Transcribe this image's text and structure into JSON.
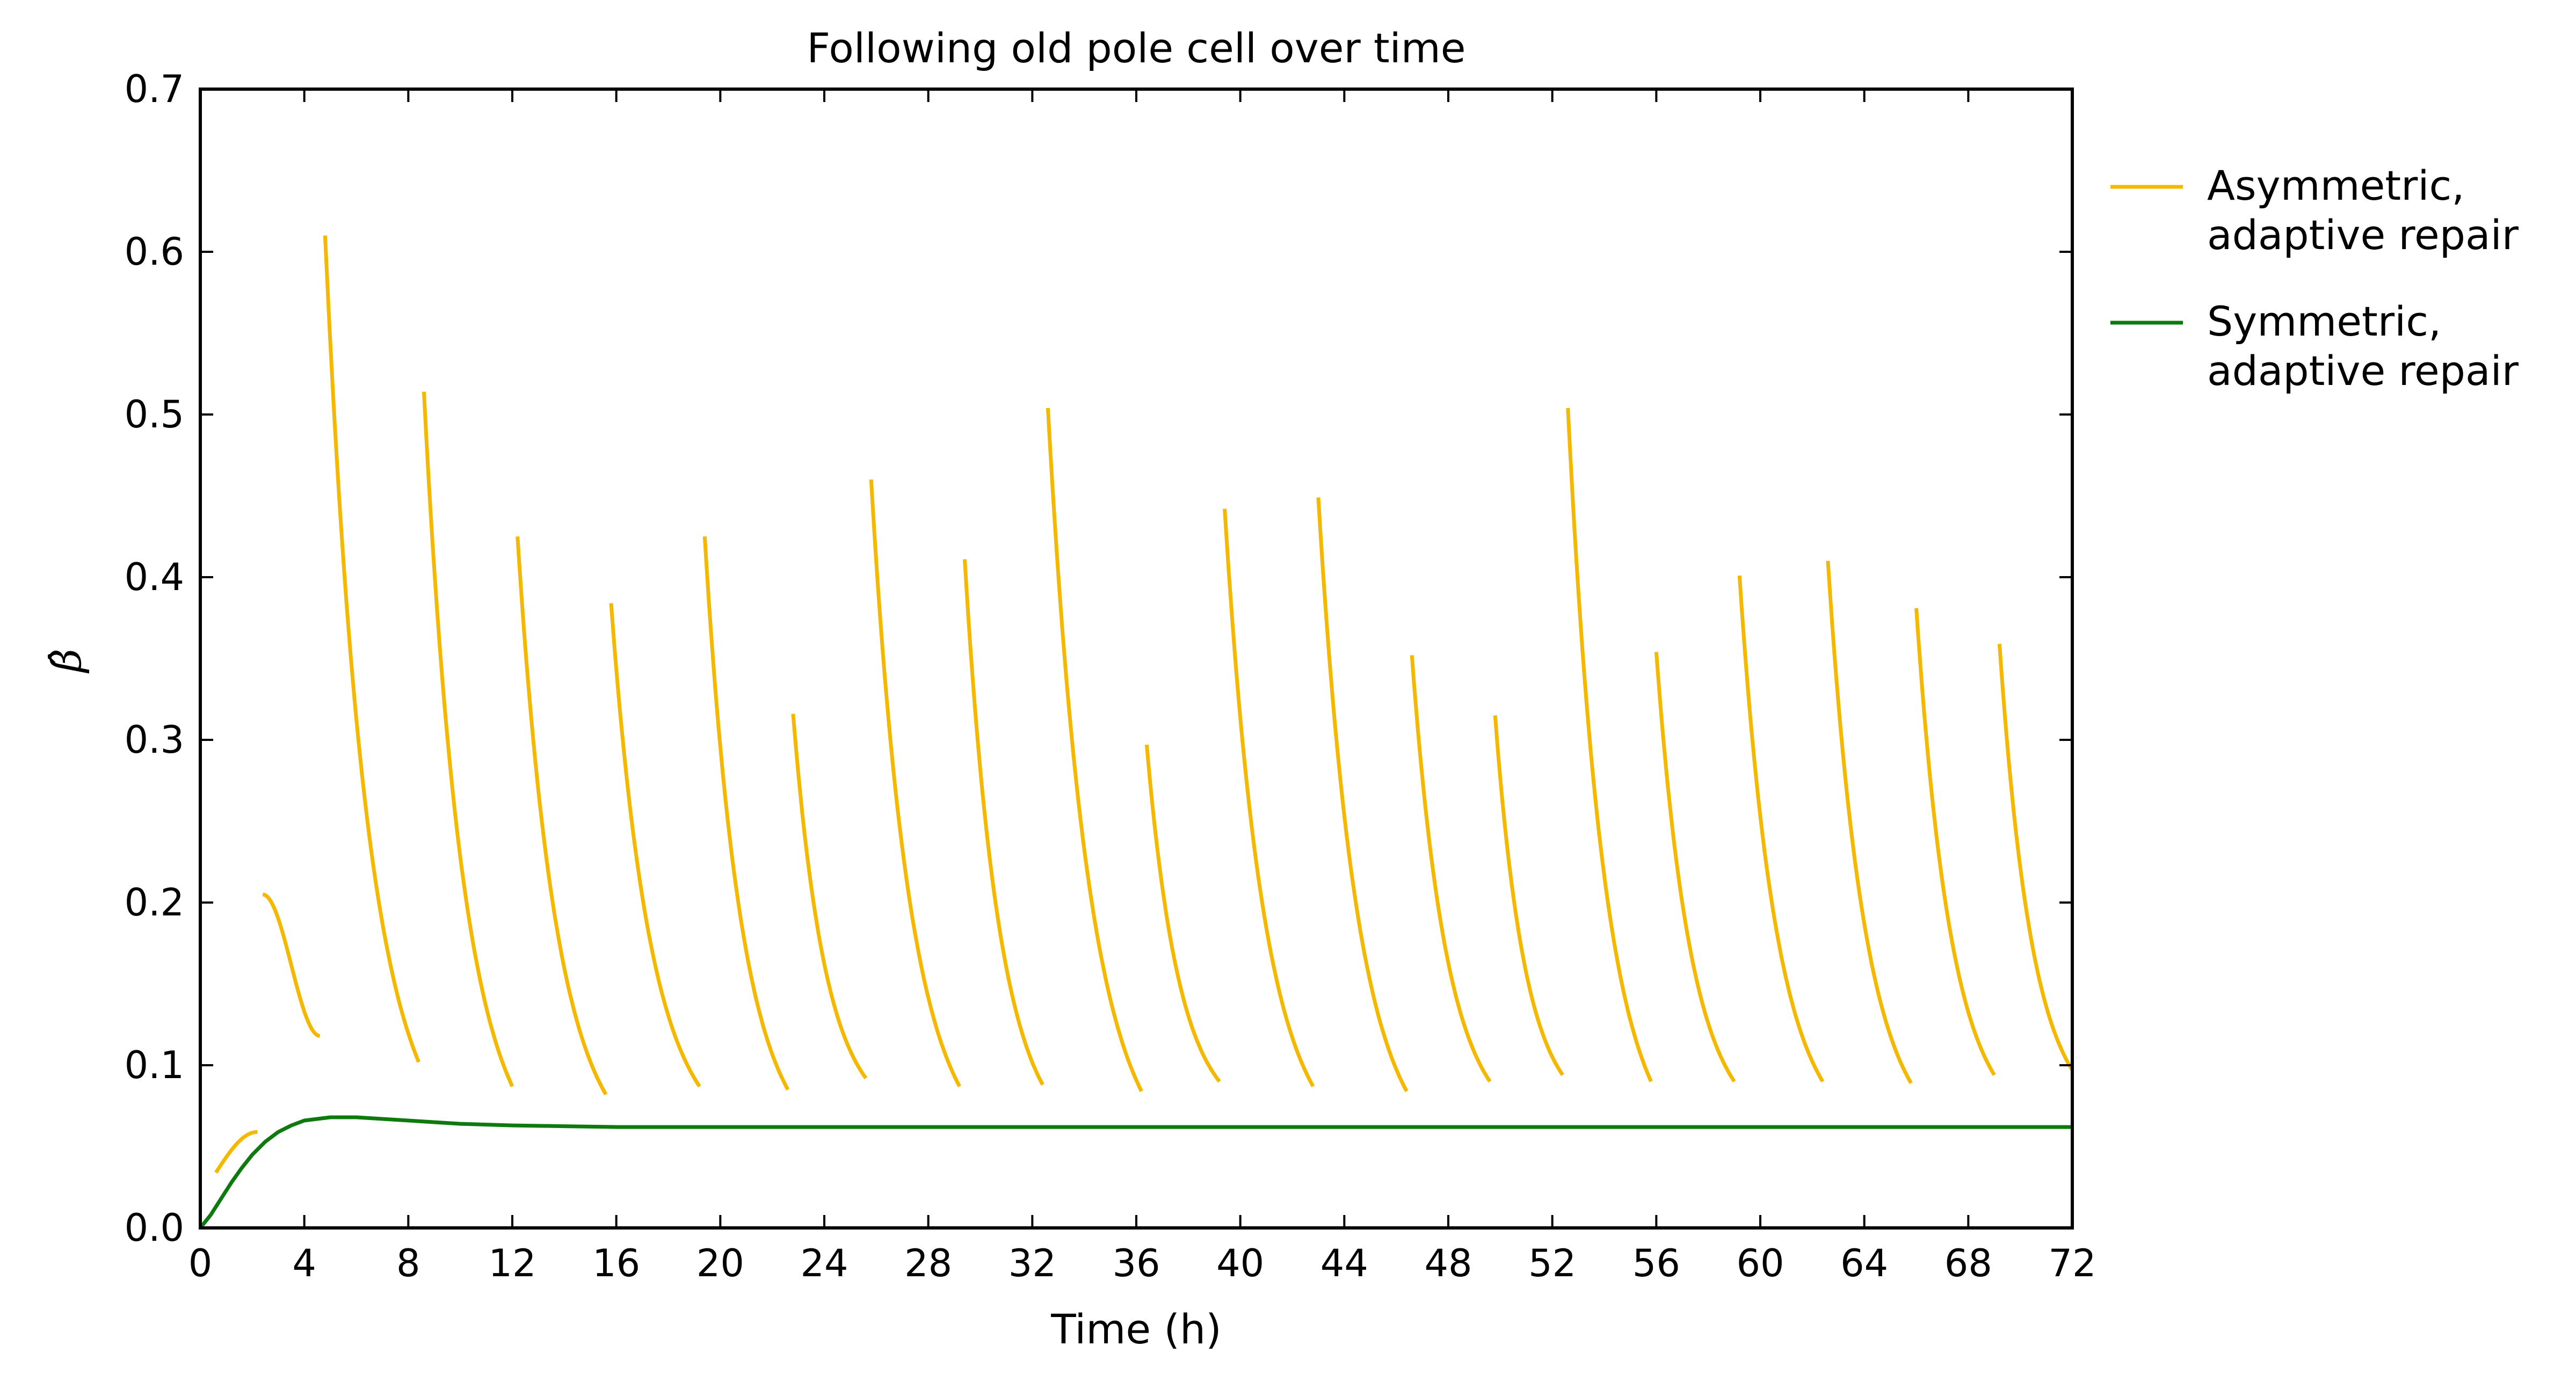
{
  "chart_data": {
    "type": "line",
    "title": "Following old pole cell over time",
    "xlabel": "Time (h)",
    "ylabel": "β̂",
    "xlim": [
      0,
      72
    ],
    "ylim": [
      0,
      0.7
    ],
    "xticks": [
      0,
      4,
      8,
      12,
      16,
      20,
      24,
      28,
      32,
      36,
      40,
      44,
      48,
      52,
      56,
      60,
      64,
      68,
      72
    ],
    "yticks": [
      0.0,
      0.1,
      0.2,
      0.3,
      0.4,
      0.5,
      0.6,
      0.7
    ],
    "xtick_labels": [
      "0",
      "4",
      "8",
      "12",
      "16",
      "20",
      "24",
      "28",
      "32",
      "36",
      "40",
      "44",
      "48",
      "52",
      "56",
      "60",
      "64",
      "68",
      "72"
    ],
    "ytick_labels": [
      "0.0",
      "0.1",
      "0.2",
      "0.3",
      "0.4",
      "0.5",
      "0.6",
      "0.7"
    ],
    "grid": false,
    "legend_position": "outside-right-top",
    "series": [
      {
        "name": "Asymmetric, adaptive repair",
        "legend_lines": [
          "Asymmetric,",
          "adaptive repair"
        ],
        "color": "#f5b800",
        "segments": [
          {
            "t_start": 0.6,
            "t_end": 2.2,
            "y_start": 0.034,
            "y_end": 0.059,
            "shape": "rise"
          },
          {
            "t_start": 2.4,
            "t_end": 4.6,
            "y_start": 0.205,
            "y_end": 0.118,
            "shape": "sigmoid"
          },
          {
            "t_start": 4.8,
            "t_end": 8.4,
            "y_start": 0.61,
            "y_end": 0.102,
            "shape": "decay"
          },
          {
            "t_start": 8.6,
            "t_end": 12.0,
            "y_start": 0.514,
            "y_end": 0.087,
            "shape": "decay"
          },
          {
            "t_start": 12.2,
            "t_end": 15.6,
            "y_start": 0.425,
            "y_end": 0.082,
            "shape": "decay"
          },
          {
            "t_start": 15.8,
            "t_end": 19.2,
            "y_start": 0.384,
            "y_end": 0.087,
            "shape": "decay"
          },
          {
            "t_start": 19.4,
            "t_end": 22.6,
            "y_start": 0.425,
            "y_end": 0.085,
            "shape": "decay"
          },
          {
            "t_start": 22.8,
            "t_end": 25.6,
            "y_start": 0.316,
            "y_end": 0.092,
            "shape": "decay"
          },
          {
            "t_start": 25.8,
            "t_end": 29.2,
            "y_start": 0.46,
            "y_end": 0.087,
            "shape": "decay"
          },
          {
            "t_start": 29.4,
            "t_end": 32.4,
            "y_start": 0.411,
            "y_end": 0.088,
            "shape": "decay"
          },
          {
            "t_start": 32.6,
            "t_end": 36.2,
            "y_start": 0.504,
            "y_end": 0.084,
            "shape": "decay"
          },
          {
            "t_start": 36.4,
            "t_end": 39.2,
            "y_start": 0.297,
            "y_end": 0.09,
            "shape": "decay"
          },
          {
            "t_start": 39.4,
            "t_end": 42.8,
            "y_start": 0.442,
            "y_end": 0.087,
            "shape": "decay"
          },
          {
            "t_start": 43.0,
            "t_end": 46.4,
            "y_start": 0.449,
            "y_end": 0.084,
            "shape": "decay"
          },
          {
            "t_start": 46.6,
            "t_end": 49.6,
            "y_start": 0.352,
            "y_end": 0.09,
            "shape": "decay"
          },
          {
            "t_start": 49.8,
            "t_end": 52.4,
            "y_start": 0.315,
            "y_end": 0.094,
            "shape": "decay"
          },
          {
            "t_start": 52.6,
            "t_end": 55.8,
            "y_start": 0.504,
            "y_end": 0.09,
            "shape": "decay"
          },
          {
            "t_start": 56.0,
            "t_end": 59.0,
            "y_start": 0.354,
            "y_end": 0.09,
            "shape": "decay"
          },
          {
            "t_start": 59.2,
            "t_end": 62.4,
            "y_start": 0.401,
            "y_end": 0.09,
            "shape": "decay"
          },
          {
            "t_start": 62.6,
            "t_end": 65.8,
            "y_start": 0.41,
            "y_end": 0.089,
            "shape": "decay"
          },
          {
            "t_start": 66.0,
            "t_end": 69.0,
            "y_start": 0.381,
            "y_end": 0.094,
            "shape": "decay"
          },
          {
            "t_start": 69.2,
            "t_end": 72.0,
            "y_start": 0.359,
            "y_end": 0.097,
            "shape": "decay"
          }
        ]
      },
      {
        "name": "Symmetric, adaptive repair",
        "legend_lines": [
          "Symmetric,",
          "adaptive repair"
        ],
        "color": "#0e7a0e",
        "points": [
          [
            0,
            0.0
          ],
          [
            0.4,
            0.008
          ],
          [
            0.8,
            0.018
          ],
          [
            1.2,
            0.028
          ],
          [
            1.6,
            0.037
          ],
          [
            2.0,
            0.045
          ],
          [
            2.5,
            0.053
          ],
          [
            3.0,
            0.059
          ],
          [
            3.5,
            0.063
          ],
          [
            4.0,
            0.066
          ],
          [
            4.5,
            0.067
          ],
          [
            5.0,
            0.068
          ],
          [
            5.5,
            0.068
          ],
          [
            6.0,
            0.068
          ],
          [
            7.0,
            0.067
          ],
          [
            8.0,
            0.066
          ],
          [
            9.0,
            0.065
          ],
          [
            10.0,
            0.064
          ],
          [
            11.0,
            0.0635
          ],
          [
            12.0,
            0.063
          ],
          [
            14.0,
            0.0625
          ],
          [
            16.0,
            0.062
          ],
          [
            20.0,
            0.062
          ],
          [
            30.0,
            0.062
          ],
          [
            40.0,
            0.062
          ],
          [
            50.0,
            0.062
          ],
          [
            60.0,
            0.062
          ],
          [
            72.0,
            0.062
          ]
        ]
      }
    ]
  }
}
